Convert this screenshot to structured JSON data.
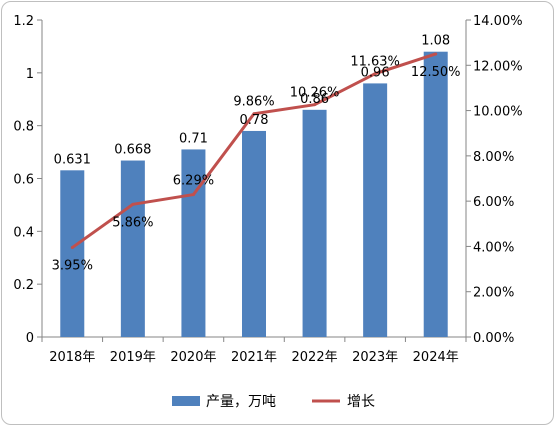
{
  "chart_data": {
    "type": "bar+line",
    "title": "",
    "categories": [
      "2018年",
      "2019年",
      "2020年",
      "2021年",
      "2022年",
      "2023年",
      "2024年"
    ],
    "series": [
      {
        "name": "产量，万吨",
        "type": "bar",
        "axis": "left",
        "color": "#4f81bd",
        "values": [
          0.631,
          0.668,
          0.71,
          0.78,
          0.86,
          0.96,
          1.08
        ],
        "labels": [
          "0.631",
          "0.668",
          "0.71",
          "0.78",
          "0.86",
          "0.96",
          "1.08"
        ]
      },
      {
        "name": "增长",
        "type": "line",
        "axis": "right",
        "color": "#c0504d",
        "values": [
          3.95,
          5.86,
          6.29,
          9.86,
          10.26,
          11.63,
          12.5
        ],
        "labels": [
          "3.95%",
          "5.86%",
          "6.29%",
          "9.86%",
          "10.26%",
          "11.63%",
          "12.50%"
        ]
      }
    ],
    "y_left": {
      "range": [
        0,
        1.2
      ],
      "ticks": [
        0,
        0.2,
        0.4,
        0.6,
        0.8,
        1,
        1.2
      ],
      "tick_labels": [
        "0",
        "0.2",
        "0.4",
        "0.6",
        "0.8",
        "1",
        "1.2"
      ]
    },
    "y_right": {
      "range": [
        0,
        14
      ],
      "ticks": [
        0,
        2,
        4,
        6,
        8,
        10,
        12,
        14
      ],
      "tick_labels": [
        "0.00%",
        "2.00%",
        "4.00%",
        "6.00%",
        "8.00%",
        "10.00%",
        "12.00%",
        "14.00%"
      ]
    },
    "grid": false,
    "legend": "bottom"
  }
}
